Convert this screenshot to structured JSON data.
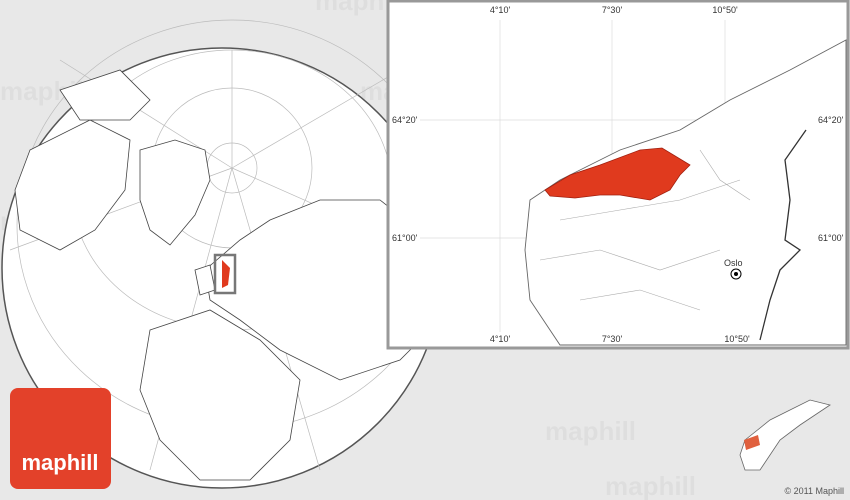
{
  "logo": {
    "text": "maphill"
  },
  "watermark": "maphill",
  "inset_map": {
    "longitude_labels": [
      "4°10'",
      "7°30'",
      "10°50'"
    ],
    "latitude_labels": [
      "64°20'",
      "61°00'"
    ],
    "city": "Oslo"
  },
  "copyright": "© 2011 Maphill"
}
